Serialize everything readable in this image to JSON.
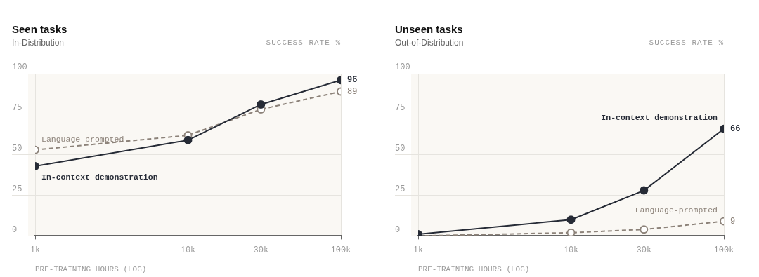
{
  "chart_data": [
    {
      "type": "line",
      "title": "Seen tasks",
      "subtitle": "In-Distribution",
      "ylabel": "SUCCESS RATE %",
      "xlabel": "PRE-TRAINING HOURS (LOG)",
      "x": [
        1000,
        10000,
        30000,
        100000
      ],
      "xlim": [
        1000,
        100000
      ],
      "xticks": [
        {
          "value": 1000,
          "label": "1k"
        },
        {
          "value": 10000,
          "label": "10k"
        },
        {
          "value": 30000,
          "label": "30k"
        },
        {
          "value": 100000,
          "label": "100k"
        }
      ],
      "ylim": [
        0,
        100
      ],
      "yticks": [
        0,
        25,
        50,
        75,
        100
      ],
      "log": "x",
      "grid": true,
      "legend": false,
      "marker": "circle",
      "series": [
        {
          "name": "In-context demonstration",
          "color": "#262b36",
          "line_style": "solid",
          "values": [
            43,
            59,
            81,
            96
          ],
          "value_labels": [
            null,
            null,
            null,
            "96"
          ]
        },
        {
          "name": "Language-prompted",
          "color": "#8c8279",
          "line_style": "dashed",
          "values": [
            53,
            62,
            78,
            89
          ],
          "value_labels": [
            null,
            null,
            null,
            "89"
          ]
        }
      ]
    },
    {
      "type": "line",
      "title": "Unseen tasks",
      "subtitle": "Out-of-Distribution",
      "ylabel": "SUCCESS RATE %",
      "xlabel": "PRE-TRAINING HOURS (LOG)",
      "x": [
        1000,
        10000,
        30000,
        100000
      ],
      "xlim": [
        1000,
        100000
      ],
      "xticks": [
        {
          "value": 1000,
          "label": "1k"
        },
        {
          "value": 10000,
          "label": "10k"
        },
        {
          "value": 30000,
          "label": "30k"
        },
        {
          "value": 100000,
          "label": "100k"
        }
      ],
      "ylim": [
        0,
        100
      ],
      "yticks": [
        0,
        25,
        50,
        75,
        100
      ],
      "log": "x",
      "grid": true,
      "legend": false,
      "marker": "circle",
      "series": [
        {
          "name": "In-context demonstration",
          "color": "#262b36",
          "line_style": "solid",
          "values": [
            1,
            10,
            28,
            66
          ],
          "value_labels": [
            null,
            null,
            null,
            "66"
          ]
        },
        {
          "name": "Language-prompted",
          "color": "#8c8279",
          "line_style": "dashed",
          "values": [
            0,
            2,
            4,
            9
          ],
          "value_labels": [
            null,
            null,
            null,
            "9"
          ]
        }
      ]
    }
  ]
}
